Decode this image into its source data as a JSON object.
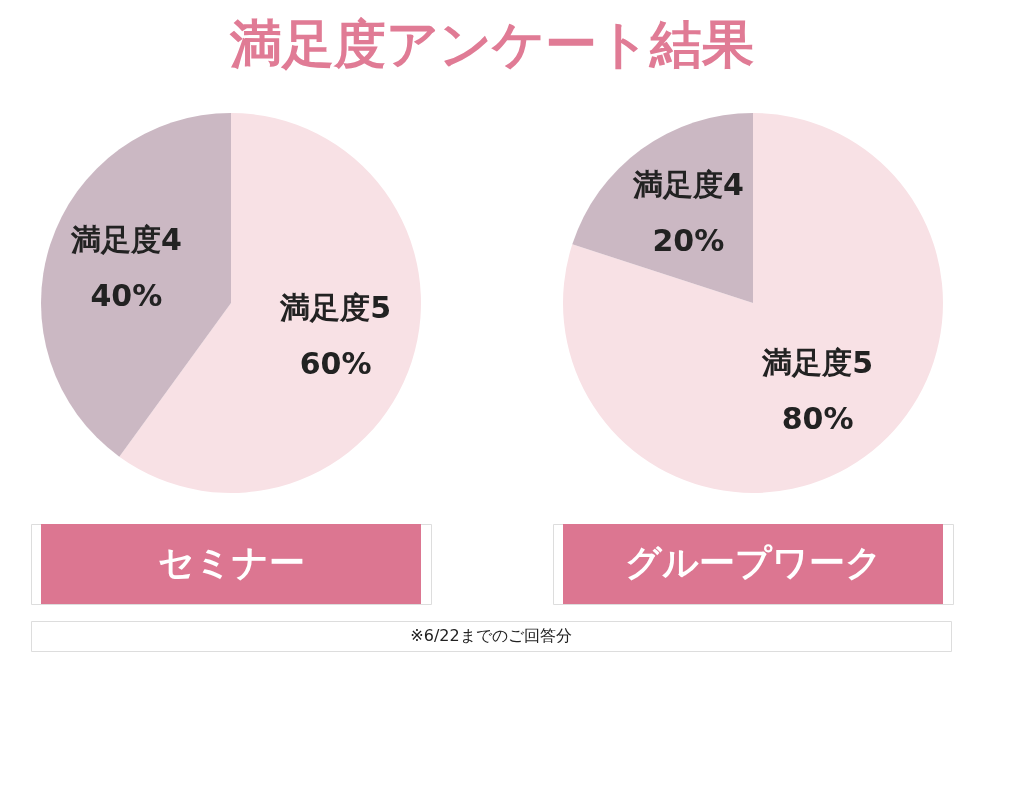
{
  "chart_data": [
    {
      "type": "pie",
      "title": "セミナー",
      "categories": [
        "満足度5",
        "満足度4"
      ],
      "values": [
        60,
        40
      ],
      "colors": [
        "#f8e1e5",
        "#cbb8c3"
      ],
      "value_labels": [
        "60%",
        "40%"
      ],
      "annotations": [
        "満足度アンケート結果",
        "※6/22までのご回答分"
      ]
    },
    {
      "type": "pie",
      "title": "グループワーク",
      "categories": [
        "満足度5",
        "満足度4"
      ],
      "values": [
        80,
        20
      ],
      "colors": [
        "#f8e1e5",
        "#cbb8c3"
      ],
      "value_labels": [
        "80%",
        "20%"
      ]
    }
  ]
}
